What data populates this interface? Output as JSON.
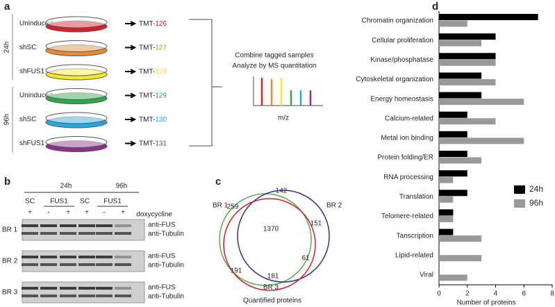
{
  "panel_a": {
    "label": "a",
    "timepoints": [
      "24h",
      "96h"
    ],
    "samples": [
      {
        "name": "Uninduced",
        "tag": "TMT-",
        "channel": "126",
        "color": "#d42027"
      },
      {
        "name": "shSC",
        "tag": "TMT-",
        "channel": "127",
        "color": "#ec8a2d"
      },
      {
        "name": "shFUS1",
        "tag": "TMT-",
        "channel": "128",
        "color": "#f5e827"
      },
      {
        "name": "Uninduced",
        "tag": "TMT-",
        "channel": "129",
        "color": "#2ea84a"
      },
      {
        "name": "shSC",
        "tag": "TMT-",
        "channel": "130",
        "color": "#25a9e0"
      },
      {
        "name": "shFUS1",
        "tag": "TMT-",
        "channel": "131",
        "color": "#8e2f8c"
      }
    ],
    "combine_text": [
      "Combine tagged samples",
      "Analyze by MS quantitation"
    ],
    "x_label": "m/z"
  },
  "panel_b": {
    "label": "b",
    "timepoints": [
      "24h",
      "96h"
    ],
    "groups": [
      "SC",
      "FUS1",
      "SC",
      "FUS1"
    ],
    "treatment": [
      "+",
      "-",
      "+",
      "+",
      "-",
      "+"
    ],
    "treatment_label": "doxycycline",
    "replicates": [
      {
        "name": "BR 1",
        "color": "#5aae4b"
      },
      {
        "name": "BR 2",
        "color": "#2e3192"
      },
      {
        "name": "BR 3",
        "color": "#d42027"
      }
    ],
    "antibodies": [
      "anti-FUS",
      "anti-Tubulin"
    ]
  },
  "panel_c": {
    "label": "c",
    "sets": [
      {
        "name": "BR 1",
        "color": "#5aae4b"
      },
      {
        "name": "BR 2",
        "color": "#2e3192"
      },
      {
        "name": "BR 3",
        "color": "#d42027"
      }
    ],
    "only_1": 259,
    "only_2": 151,
    "only_3": 181,
    "shared_12": 142,
    "shared_13": 191,
    "shared_23": 61,
    "shared_all": 1370,
    "caption": "Quantified proteins"
  },
  "chart_data": {
    "type": "bar",
    "orientation": "horizontal",
    "panel_label": "d",
    "categories": [
      "Chromatin organization",
      "Cellular proliferation",
      "Kinase/phosphatase",
      "Cytoskeletal organization",
      "Energy homeostasis",
      "Calcium-related",
      "Metal ion binding",
      "Protein folding/ER",
      "RNA processing",
      "Translation",
      "Telomere-related",
      "Tanscription",
      "Lipid-related",
      "Viral"
    ],
    "series": [
      {
        "name": "24h",
        "color": "#000000",
        "values": [
          7,
          4,
          4,
          3,
          3,
          2,
          2,
          2,
          2,
          2,
          1,
          1,
          0,
          0
        ]
      },
      {
        "name": "96h",
        "color": "#999999",
        "values": [
          2,
          3,
          4,
          4,
          6,
          4,
          6,
          3,
          1,
          1,
          1,
          3,
          3,
          2
        ]
      }
    ],
    "xlim": [
      0,
      8
    ],
    "xticks": [
      0,
      2,
      4,
      6,
      8
    ],
    "x_label": "Number of proteins",
    "legend": "center right"
  }
}
